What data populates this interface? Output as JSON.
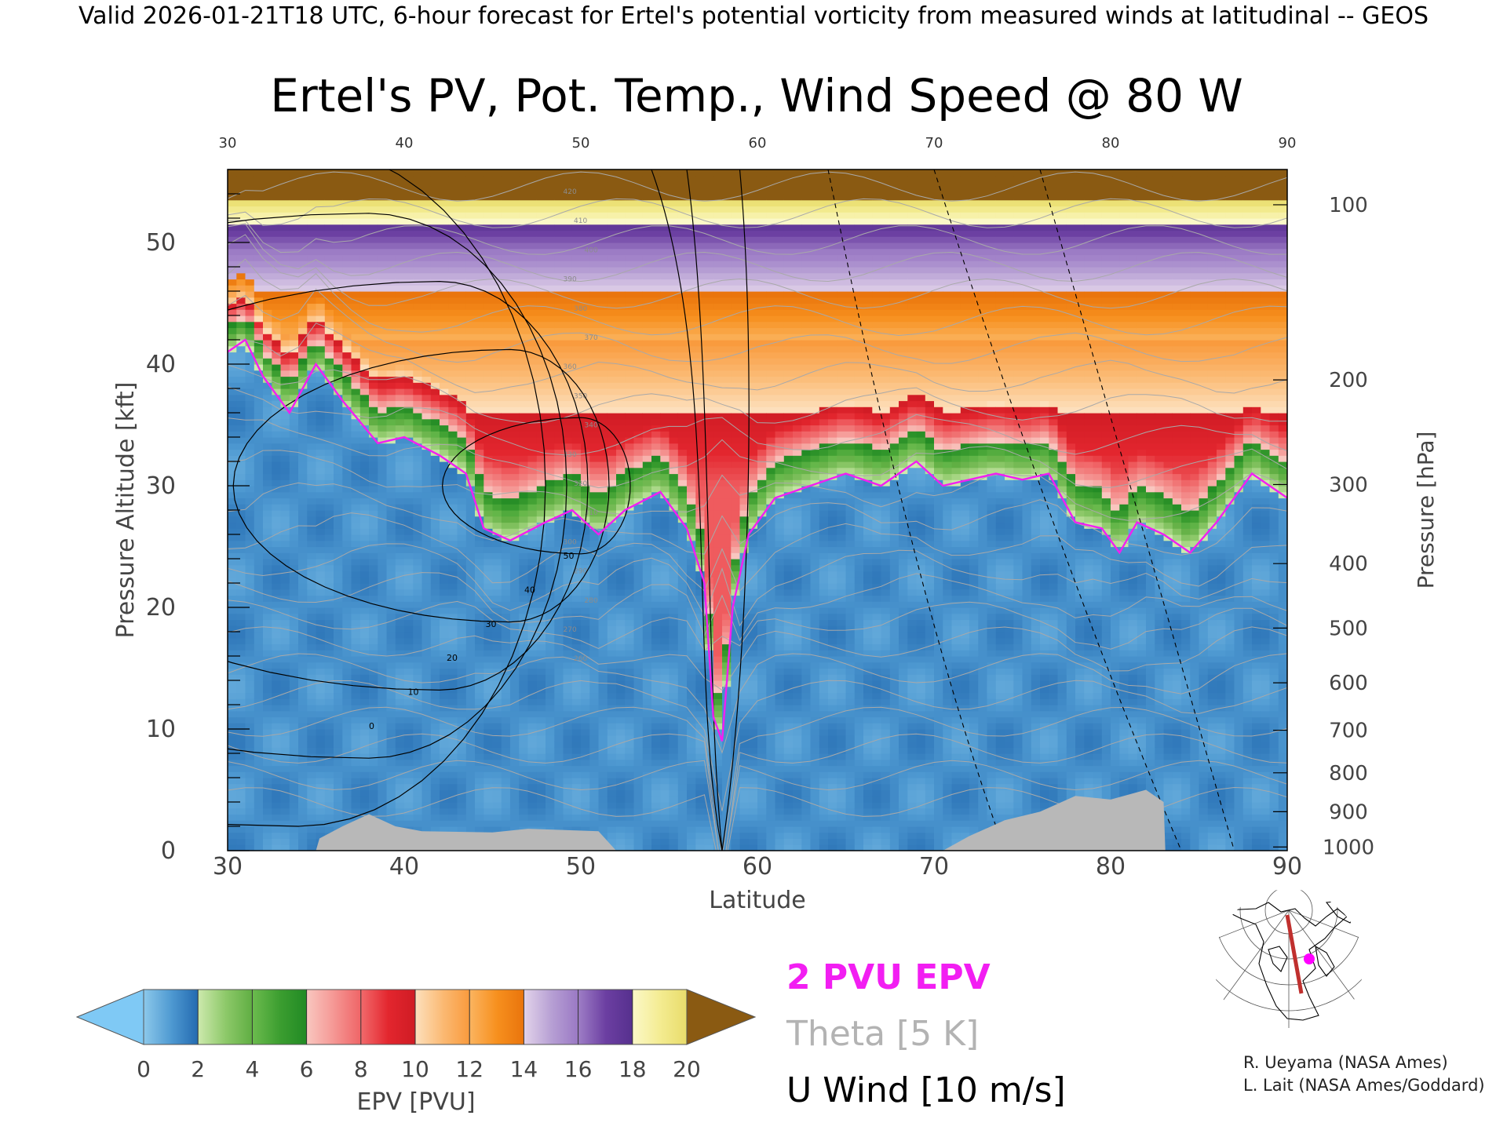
{
  "header": {
    "valid_line": "Valid 2026-01-21T18 UTC, 6-hour forecast for Ertel's potential vorticity from measured winds at latitudinal -- GEOS"
  },
  "chart_data": {
    "type": "heatmap",
    "title": "Ertel's PV, Pot. Temp., Wind Speed @ 80 W",
    "xlabel": "Latitude",
    "ylabel": "Pressure Altitude [kft]",
    "y2label": "Pressure [hPa]",
    "xlim": [
      30,
      90
    ],
    "ylim": [
      0,
      56
    ],
    "x_ticks": [
      "30",
      "40",
      "50",
      "60",
      "70",
      "80",
      "90"
    ],
    "y_ticks": [
      "0",
      "10",
      "20",
      "30",
      "40",
      "50"
    ],
    "pressure_ticks": [
      {
        "label": "100",
        "kft": 53.1
      },
      {
        "label": "200",
        "kft": 38.7
      },
      {
        "label": "300",
        "kft": 30.1
      },
      {
        "label": "400",
        "kft": 23.6
      },
      {
        "label": "500",
        "kft": 18.3
      },
      {
        "label": "600",
        "kft": 13.8
      },
      {
        "label": "700",
        "kft": 9.9
      },
      {
        "label": "800",
        "kft": 6.4
      },
      {
        "label": "900",
        "kft": 3.2
      },
      {
        "label": "1000",
        "kft": 0.3
      }
    ],
    "colorbar": {
      "label": "EPV [PVU]",
      "ticks": [
        "0",
        "2",
        "4",
        "6",
        "8",
        "10",
        "12",
        "14",
        "16",
        "18",
        "20"
      ],
      "under_color": "#7fc9f5",
      "over_color": "#8a5a12",
      "segments": [
        {
          "from": 0,
          "to": 1,
          "c1": "#8cc8ea",
          "c2": "#4f9ad2"
        },
        {
          "from": 1,
          "to": 2,
          "c1": "#4f9ad2",
          "c2": "#236ab0"
        },
        {
          "from": 2,
          "to": 3,
          "c1": "#cde9ad",
          "c2": "#8ec96a"
        },
        {
          "from": 3,
          "to": 4,
          "c1": "#8ec96a",
          "c2": "#5fae42"
        },
        {
          "from": 4,
          "to": 5,
          "c1": "#6cbb4e",
          "c2": "#3c9e30"
        },
        {
          "from": 5,
          "to": 6,
          "c1": "#3c9e30",
          "c2": "#218a24"
        },
        {
          "from": 6,
          "to": 7,
          "c1": "#f9c7c0",
          "c2": "#f59794"
        },
        {
          "from": 7,
          "to": 8,
          "c1": "#f59794",
          "c2": "#ef6466"
        },
        {
          "from": 8,
          "to": 9,
          "c1": "#f26a6c",
          "c2": "#e3262e"
        },
        {
          "from": 9,
          "to": 10,
          "c1": "#e3262e",
          "c2": "#cf1b24"
        },
        {
          "from": 10,
          "to": 11,
          "c1": "#fde0bd",
          "c2": "#fbba74"
        },
        {
          "from": 11,
          "to": 12,
          "c1": "#fbba74",
          "c2": "#f99a3c"
        },
        {
          "from": 12,
          "to": 13,
          "c1": "#fbb460",
          "c2": "#f7901e"
        },
        {
          "from": 13,
          "to": 14,
          "c1": "#f7901e",
          "c2": "#e9740c"
        },
        {
          "from": 14,
          "to": 15,
          "c1": "#e2d3ea",
          "c2": "#b7a0d4"
        },
        {
          "from": 15,
          "to": 16,
          "c1": "#b7a0d4",
          "c2": "#9a78c4"
        },
        {
          "from": 16,
          "to": 17,
          "c1": "#9e7ec6",
          "c2": "#6c3fa2"
        },
        {
          "from": 17,
          "to": 18,
          "c1": "#6c3fa2",
          "c2": "#56308e"
        },
        {
          "from": 18,
          "to": 19,
          "c1": "#fbf8c8",
          "c2": "#f4ec92"
        },
        {
          "from": 19,
          "to": 20,
          "c1": "#f4ec92",
          "c2": "#e8dc6a"
        }
      ]
    },
    "legend": [
      {
        "label": "2 PVU EPV",
        "color": "#f21ef2"
      },
      {
        "label": "Theta [5 K]",
        "color": "#b3b3b3"
      },
      {
        "label": "U Wind [10 m/s]",
        "color": "#000000"
      }
    ],
    "theta_contour_labels": [
      "420",
      "410",
      "400",
      "390",
      "380",
      "370",
      "360",
      "350",
      "340",
      "330",
      "320",
      "310",
      "300",
      "290",
      "280",
      "270",
      "260"
    ],
    "wind_contour_labels": [
      "0",
      "10",
      "20",
      "30",
      "40",
      "50"
    ],
    "pv2_tropopause_kft": [
      {
        "lat": 30,
        "kft": 41
      },
      {
        "lat": 31,
        "kft": 42
      },
      {
        "lat": 32,
        "kft": 39
      },
      {
        "lat": 33.5,
        "kft": 36
      },
      {
        "lat": 35,
        "kft": 40
      },
      {
        "lat": 36.5,
        "kft": 37
      },
      {
        "lat": 38.5,
        "kft": 33.5
      },
      {
        "lat": 40,
        "kft": 34
      },
      {
        "lat": 42,
        "kft": 32.5
      },
      {
        "lat": 43.5,
        "kft": 31
      },
      {
        "lat": 44.5,
        "kft": 26.5
      },
      {
        "lat": 46,
        "kft": 25.5
      },
      {
        "lat": 48,
        "kft": 27
      },
      {
        "lat": 49.5,
        "kft": 28
      },
      {
        "lat": 51,
        "kft": 26
      },
      {
        "lat": 52.5,
        "kft": 28
      },
      {
        "lat": 54.5,
        "kft": 29.5
      },
      {
        "lat": 56,
        "kft": 26.5
      },
      {
        "lat": 57,
        "kft": 22
      },
      {
        "lat": 57.5,
        "kft": 11
      },
      {
        "lat": 58,
        "kft": 9
      },
      {
        "lat": 58.6,
        "kft": 20
      },
      {
        "lat": 59.5,
        "kft": 26
      },
      {
        "lat": 61,
        "kft": 29
      },
      {
        "lat": 63,
        "kft": 30
      },
      {
        "lat": 65,
        "kft": 31
      },
      {
        "lat": 67,
        "kft": 30
      },
      {
        "lat": 69,
        "kft": 32
      },
      {
        "lat": 70.5,
        "kft": 30
      },
      {
        "lat": 72,
        "kft": 30.5
      },
      {
        "lat": 73.5,
        "kft": 31
      },
      {
        "lat": 75,
        "kft": 30.5
      },
      {
        "lat": 76.5,
        "kft": 31
      },
      {
        "lat": 78,
        "kft": 27
      },
      {
        "lat": 79.5,
        "kft": 26.5
      },
      {
        "lat": 80.5,
        "kft": 24.5
      },
      {
        "lat": 81.5,
        "kft": 27
      },
      {
        "lat": 83,
        "kft": 26
      },
      {
        "lat": 84.5,
        "kft": 24.5
      },
      {
        "lat": 86,
        "kft": 27
      },
      {
        "lat": 88,
        "kft": 31
      },
      {
        "lat": 90,
        "kft": 29
      }
    ],
    "terrain_kft": [
      {
        "lat": 30,
        "kft": 0
      },
      {
        "lat": 35,
        "kft": 0
      },
      {
        "lat": 35.2,
        "kft": 1
      },
      {
        "lat": 36.5,
        "kft": 2
      },
      {
        "lat": 38,
        "kft": 3
      },
      {
        "lat": 39.5,
        "kft": 2
      },
      {
        "lat": 41,
        "kft": 1.6
      },
      {
        "lat": 45,
        "kft": 1.5
      },
      {
        "lat": 47,
        "kft": 1.8
      },
      {
        "lat": 51,
        "kft": 1.6
      },
      {
        "lat": 52,
        "kft": 0
      },
      {
        "lat": 70.5,
        "kft": 0
      },
      {
        "lat": 72,
        "kft": 1.2
      },
      {
        "lat": 74,
        "kft": 2.5
      },
      {
        "lat": 76,
        "kft": 3.2
      },
      {
        "lat": 78,
        "kft": 4.5
      },
      {
        "lat": 80,
        "kft": 4.2
      },
      {
        "lat": 82,
        "kft": 5
      },
      {
        "lat": 83,
        "kft": 4
      },
      {
        "lat": 83.1,
        "kft": 0
      },
      {
        "lat": 90,
        "kft": 0
      }
    ],
    "tropospheric_pv": 1.2,
    "stratospheric_pv_by_kft": [
      {
        "kft": 30,
        "pv": 4.5
      },
      {
        "kft": 36,
        "pv": 6.5
      },
      {
        "kft": 42,
        "pv": 9
      },
      {
        "kft": 47,
        "pv": 12
      },
      {
        "kft": 51,
        "pv": 15
      },
      {
        "kft": 54,
        "pv": 19
      },
      {
        "kft": 56,
        "pv": 21
      }
    ],
    "wind_jet_core": {
      "lat": 58,
      "kft": 36
    },
    "inset_map": {
      "section_line": [
        {
          "lon": -80,
          "lat": 30
        },
        {
          "lon": -80,
          "lat": 90
        }
      ],
      "marker_color": "#ff00ff",
      "line_color": "#c0302e"
    },
    "credits": [
      "R. Ueyama (NASA Ames)",
      "L. Lait (NASA Ames/Goddard)"
    ]
  }
}
